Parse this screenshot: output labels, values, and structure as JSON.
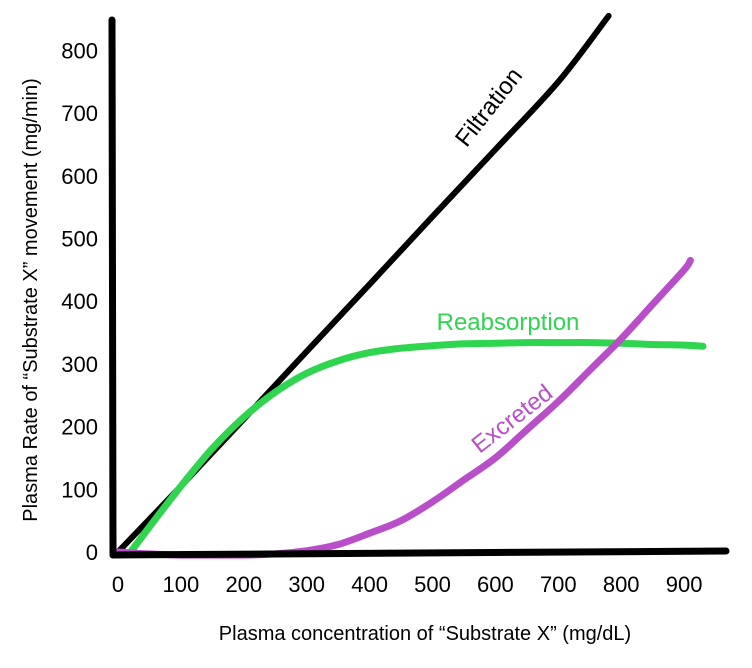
{
  "chart_data": {
    "type": "line",
    "title": "",
    "xlabel": "Plasma concentration of “Substrate X” (mg/dL)",
    "ylabel": "Plasma Rate of “Substrate X” movement (mg/min)",
    "xlim": [
      0,
      930
    ],
    "ylim": [
      0,
      860
    ],
    "x_ticks": [
      0,
      100,
      200,
      300,
      400,
      500,
      600,
      700,
      800,
      900
    ],
    "y_ticks": [
      0,
      100,
      200,
      300,
      400,
      500,
      600,
      700,
      800
    ],
    "grid": false,
    "legend": "none (series labelled directly on the lines)",
    "series": [
      {
        "name": "Filtration",
        "color": "#000000",
        "x": [
          0,
          100,
          200,
          300,
          400,
          500,
          600,
          700,
          780
        ],
        "y": [
          0,
          105,
          212,
          320,
          427,
          535,
          642,
          750,
          855
        ]
      },
      {
        "name": "Reabsorption",
        "color": "#2fd44f",
        "x": [
          20,
          50,
          100,
          150,
          200,
          250,
          300,
          350,
          400,
          450,
          500,
          550,
          600,
          650,
          700,
          750,
          800,
          850,
          900,
          930
        ],
        "y": [
          0,
          40,
          105,
          165,
          215,
          255,
          285,
          305,
          318,
          325,
          329,
          332,
          333,
          334,
          334,
          334,
          333,
          331,
          330,
          328
        ]
      },
      {
        "name": "Excreted",
        "color": "#b94fc8",
        "x": [
          0,
          50,
          100,
          150,
          200,
          250,
          300,
          350,
          400,
          450,
          500,
          550,
          600,
          650,
          700,
          750,
          800,
          850,
          900,
          910
        ],
        "y": [
          0,
          -3,
          -5,
          -5,
          -5,
          -3,
          2,
          12,
          30,
          50,
          80,
          115,
          150,
          195,
          240,
          290,
          340,
          395,
          450,
          465
        ]
      }
    ]
  }
}
